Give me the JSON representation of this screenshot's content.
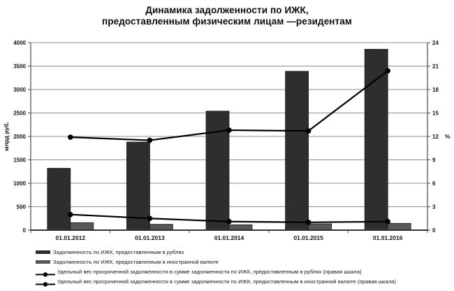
{
  "title": {
    "line1": "Динамика задолженности по ИЖК,",
    "line2": "предоставленным физическим лицам —резидентам"
  },
  "chart_data": {
    "type": "combo-bar-line",
    "grid": true,
    "legend_position": "bottom-left",
    "categories": [
      "01.01.2012",
      "01.01.2013",
      "01.01.2014",
      "01.01.2015",
      "01.01.2016"
    ],
    "axes": {
      "left": {
        "title": "млрд руб.",
        "min": 0,
        "max": 4000,
        "step": 500
      },
      "right": {
        "title": "%",
        "min": 0,
        "max": 24,
        "step": 3
      }
    },
    "series": [
      {
        "name": "Задолженность по ИЖК, предоставленным в рублях",
        "type": "bar",
        "axis": "left",
        "color": "#2e2e2e",
        "values": [
          1320,
          1880,
          2540,
          3390,
          3860
        ]
      },
      {
        "name": "Задолженность по ИЖК, предоставленным в иностранной валюте",
        "type": "bar",
        "axis": "left",
        "color": "#575757",
        "values": [
          160,
          125,
          115,
          135,
          145
        ]
      },
      {
        "name": "Удельный вес просроченной задолженности в сумме задолженности по ИЖК, предоставленным в рублях (правая шкала)",
        "type": "line",
        "axis": "right",
        "color": "#000000",
        "marker": "circle",
        "values": [
          2.0,
          1.5,
          1.1,
          1.0,
          1.1
        ]
      },
      {
        "name": "Удельный вес просроченной задолженности в сумме задолженности по ИЖК, предоставленным в иностранной валюте (правая шкала)",
        "type": "line",
        "axis": "right",
        "color": "#000000",
        "marker": "circle",
        "values": [
          11.9,
          11.5,
          12.8,
          12.7,
          20.4
        ]
      }
    ]
  }
}
